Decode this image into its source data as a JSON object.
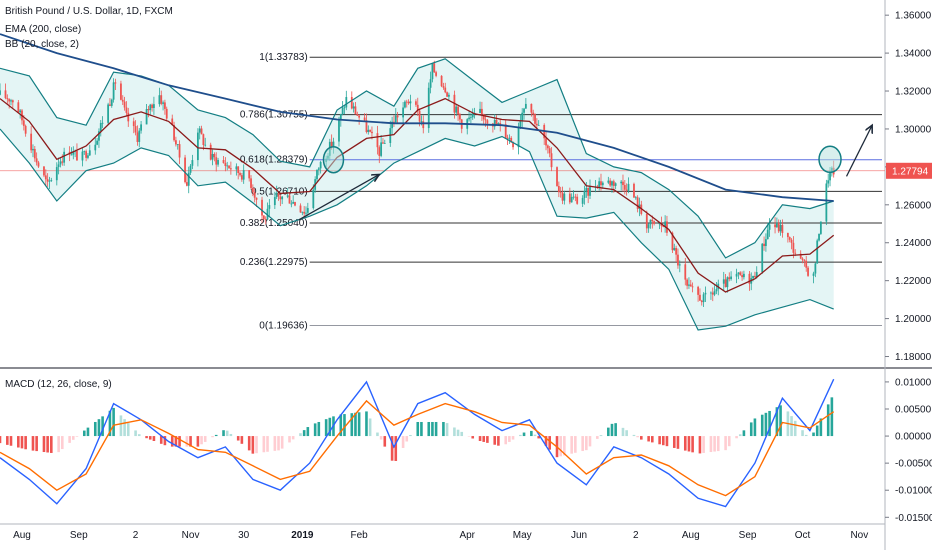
{
  "chart_data": {
    "type": "candlestick",
    "title": "British Pound / U.S. Dollar, 1D, FXCM",
    "indicators": [
      "EMA (200, close)",
      "BB (20, close, 2)"
    ],
    "price_axis": {
      "ticks": [
        "1.36000",
        "1.34000",
        "1.32000",
        "1.30000",
        "1.28000",
        "1.26000",
        "1.24000",
        "1.22000",
        "1.20000",
        "1.18000"
      ],
      "ylim": [
        1.175,
        1.368
      ],
      "last_price_label": "1.27794",
      "last_price": 1.27794
    },
    "fib_levels": [
      {
        "label": "1(1.33783)",
        "value": 1.33783
      },
      {
        "label": "0.786(1.30755)",
        "value": 1.30755
      },
      {
        "label": "0.618(1.28379)",
        "value": 1.28379
      },
      {
        "label": "0.5(1.26710)",
        "value": 1.2671
      },
      {
        "label": "0.382(1.25040)",
        "value": 1.2504
      },
      {
        "label": "0.236(1.22975)",
        "value": 1.22975
      },
      {
        "label": "0(1.19636)",
        "value": 1.19636
      }
    ],
    "macd": {
      "label": "MACD (12, 26, close, 9)",
      "ticks": [
        "0.01000",
        "0.00500",
        "0.00000",
        "-0.00500",
        "-0.01000",
        "-0.01500"
      ],
      "ylim": [
        -0.0155,
        0.0122
      ]
    },
    "x_axis_labels": [
      "Aug",
      "Sep",
      "2",
      "Nov",
      "30",
      "2019",
      "Feb",
      "Apr",
      "May",
      "Jun",
      "2",
      "Aug",
      "Sep",
      "Oct",
      "Nov"
    ],
    "price_series": [
      {
        "date": "2018-07-20",
        "price": 1.318
      },
      {
        "date": "2018-07-28",
        "price": 1.315
      },
      {
        "date": "2018-08-03",
        "price": 1.3
      },
      {
        "date": "2018-08-09",
        "price": 1.283
      },
      {
        "date": "2018-08-15",
        "price": 1.27
      },
      {
        "date": "2018-08-21",
        "price": 1.283
      },
      {
        "date": "2018-08-27",
        "price": 1.289
      },
      {
        "date": "2018-09-02",
        "price": 1.284
      },
      {
        "date": "2018-09-10",
        "price": 1.294
      },
      {
        "date": "2018-09-18",
        "price": 1.315
      },
      {
        "date": "2018-09-21",
        "price": 1.325
      },
      {
        "date": "2018-09-27",
        "price": 1.306
      },
      {
        "date": "2018-10-03",
        "price": 1.296
      },
      {
        "date": "2018-10-09",
        "price": 1.311
      },
      {
        "date": "2018-10-15",
        "price": 1.318
      },
      {
        "date": "2018-10-22",
        "price": 1.3
      },
      {
        "date": "2018-10-30",
        "price": 1.271
      },
      {
        "date": "2018-11-05",
        "price": 1.3
      },
      {
        "date": "2018-11-12",
        "price": 1.285
      },
      {
        "date": "2018-11-19",
        "price": 1.282
      },
      {
        "date": "2018-11-26",
        "price": 1.278
      },
      {
        "date": "2018-12-03",
        "price": 1.274
      },
      {
        "date": "2018-12-11",
        "price": 1.252
      },
      {
        "date": "2018-12-18",
        "price": 1.264
      },
      {
        "date": "2018-12-24",
        "price": 1.264
      },
      {
        "date": "2019-01-03",
        "price": 1.256
      },
      {
        "date": "2019-01-10",
        "price": 1.28
      },
      {
        "date": "2019-01-18",
        "price": 1.294
      },
      {
        "date": "2019-01-25",
        "price": 1.316
      },
      {
        "date": "2019-02-04",
        "price": 1.302
      },
      {
        "date": "2019-02-12",
        "price": 1.288
      },
      {
        "date": "2019-02-20",
        "price": 1.305
      },
      {
        "date": "2019-03-01",
        "price": 1.316
      },
      {
        "date": "2019-03-08",
        "price": 1.302
      },
      {
        "date": "2019-03-13",
        "price": 1.332
      },
      {
        "date": "2019-03-20",
        "price": 1.322
      },
      {
        "date": "2019-03-29",
        "price": 1.303
      },
      {
        "date": "2019-04-08",
        "price": 1.308
      },
      {
        "date": "2019-04-18",
        "price": 1.302
      },
      {
        "date": "2019-04-26",
        "price": 1.293
      },
      {
        "date": "2019-05-03",
        "price": 1.316
      },
      {
        "date": "2019-05-13",
        "price": 1.294
      },
      {
        "date": "2019-05-22",
        "price": 1.265
      },
      {
        "date": "2019-06-01",
        "price": 1.262
      },
      {
        "date": "2019-06-11",
        "price": 1.272
      },
      {
        "date": "2019-06-21",
        "price": 1.272
      },
      {
        "date": "2019-06-28",
        "price": 1.27
      },
      {
        "date": "2019-07-08",
        "price": 1.25
      },
      {
        "date": "2019-07-18",
        "price": 1.249
      },
      {
        "date": "2019-07-30",
        "price": 1.216
      },
      {
        "date": "2019-08-08",
        "price": 1.21
      },
      {
        "date": "2019-08-16",
        "price": 1.216
      },
      {
        "date": "2019-08-26",
        "price": 1.222
      },
      {
        "date": "2019-09-04",
        "price": 1.221
      },
      {
        "date": "2019-09-13",
        "price": 1.25
      },
      {
        "date": "2019-09-20",
        "price": 1.247
      },
      {
        "date": "2019-09-30",
        "price": 1.23
      },
      {
        "date": "2019-10-07",
        "price": 1.222
      },
      {
        "date": "2019-10-10",
        "price": 1.247
      },
      {
        "date": "2019-10-15",
        "price": 1.275
      },
      {
        "date": "2019-10-18",
        "price": 1.278
      }
    ],
    "ema200": [
      {
        "date": "2018-07-20",
        "value": 1.35
      },
      {
        "date": "2018-08-20",
        "value": 1.34
      },
      {
        "date": "2018-09-20",
        "value": 1.332
      },
      {
        "date": "2018-10-20",
        "value": 1.323
      },
      {
        "date": "2018-11-20",
        "value": 1.316
      },
      {
        "date": "2018-12-20",
        "value": 1.309
      },
      {
        "date": "2019-01-20",
        "value": 1.305
      },
      {
        "date": "2019-02-20",
        "value": 1.303
      },
      {
        "date": "2019-03-20",
        "value": 1.303
      },
      {
        "date": "2019-04-20",
        "value": 1.302
      },
      {
        "date": "2019-05-20",
        "value": 1.298
      },
      {
        "date": "2019-06-20",
        "value": 1.29
      },
      {
        "date": "2019-07-20",
        "value": 1.28
      },
      {
        "date": "2019-08-20",
        "value": 1.268
      },
      {
        "date": "2019-09-20",
        "value": 1.264
      },
      {
        "date": "2019-10-18",
        "value": 1.262
      }
    ],
    "bb_middle": [
      {
        "date": "2018-07-20",
        "value": 1.316
      },
      {
        "date": "2018-08-05",
        "value": 1.304
      },
      {
        "date": "2018-08-20",
        "value": 1.284
      },
      {
        "date": "2018-09-05",
        "value": 1.291
      },
      {
        "date": "2018-09-20",
        "value": 1.305
      },
      {
        "date": "2018-10-05",
        "value": 1.309
      },
      {
        "date": "2018-10-20",
        "value": 1.304
      },
      {
        "date": "2018-11-05",
        "value": 1.29
      },
      {
        "date": "2018-11-20",
        "value": 1.289
      },
      {
        "date": "2018-12-05",
        "value": 1.279
      },
      {
        "date": "2018-12-20",
        "value": 1.266
      },
      {
        "date": "2019-01-05",
        "value": 1.267
      },
      {
        "date": "2019-01-20",
        "value": 1.285
      },
      {
        "date": "2019-02-05",
        "value": 1.295
      },
      {
        "date": "2019-02-20",
        "value": 1.297
      },
      {
        "date": "2019-03-05",
        "value": 1.31
      },
      {
        "date": "2019-03-20",
        "value": 1.316
      },
      {
        "date": "2019-04-05",
        "value": 1.308
      },
      {
        "date": "2019-04-20",
        "value": 1.305
      },
      {
        "date": "2019-05-05",
        "value": 1.304
      },
      {
        "date": "2019-05-20",
        "value": 1.29
      },
      {
        "date": "2019-06-05",
        "value": 1.27
      },
      {
        "date": "2019-06-20",
        "value": 1.268
      },
      {
        "date": "2019-07-05",
        "value": 1.258
      },
      {
        "date": "2019-07-20",
        "value": 1.247
      },
      {
        "date": "2019-08-05",
        "value": 1.224
      },
      {
        "date": "2019-08-20",
        "value": 1.214
      },
      {
        "date": "2019-09-05",
        "value": 1.221
      },
      {
        "date": "2019-09-20",
        "value": 1.233
      },
      {
        "date": "2019-10-05",
        "value": 1.234
      },
      {
        "date": "2019-10-18",
        "value": 1.244
      }
    ],
    "bb_upper": [
      {
        "date": "2018-07-20",
        "value": 1.332
      },
      {
        "date": "2018-08-05",
        "value": 1.328
      },
      {
        "date": "2018-08-20",
        "value": 1.306
      },
      {
        "date": "2018-09-05",
        "value": 1.302
      },
      {
        "date": "2018-09-20",
        "value": 1.33
      },
      {
        "date": "2018-10-05",
        "value": 1.328
      },
      {
        "date": "2018-10-20",
        "value": 1.323
      },
      {
        "date": "2018-11-05",
        "value": 1.31
      },
      {
        "date": "2018-11-20",
        "value": 1.306
      },
      {
        "date": "2018-12-05",
        "value": 1.297
      },
      {
        "date": "2018-12-20",
        "value": 1.283
      },
      {
        "date": "2019-01-05",
        "value": 1.28
      },
      {
        "date": "2019-01-20",
        "value": 1.31
      },
      {
        "date": "2019-02-05",
        "value": 1.32
      },
      {
        "date": "2019-02-20",
        "value": 1.312
      },
      {
        "date": "2019-03-05",
        "value": 1.332
      },
      {
        "date": "2019-03-20",
        "value": 1.337
      },
      {
        "date": "2019-04-05",
        "value": 1.325
      },
      {
        "date": "2019-04-20",
        "value": 1.314
      },
      {
        "date": "2019-05-05",
        "value": 1.32
      },
      {
        "date": "2019-05-20",
        "value": 1.326
      },
      {
        "date": "2019-06-05",
        "value": 1.287
      },
      {
        "date": "2019-06-20",
        "value": 1.28
      },
      {
        "date": "2019-07-05",
        "value": 1.277
      },
      {
        "date": "2019-07-20",
        "value": 1.268
      },
      {
        "date": "2019-08-05",
        "value": 1.254
      },
      {
        "date": "2019-08-20",
        "value": 1.232
      },
      {
        "date": "2019-09-05",
        "value": 1.24
      },
      {
        "date": "2019-09-20",
        "value": 1.26
      },
      {
        "date": "2019-10-05",
        "value": 1.258
      },
      {
        "date": "2019-10-18",
        "value": 1.262
      }
    ],
    "bb_lower": [
      {
        "date": "2018-07-20",
        "value": 1.3
      },
      {
        "date": "2018-08-05",
        "value": 1.282
      },
      {
        "date": "2018-08-20",
        "value": 1.262
      },
      {
        "date": "2018-09-05",
        "value": 1.278
      },
      {
        "date": "2018-09-20",
        "value": 1.282
      },
      {
        "date": "2018-10-05",
        "value": 1.29
      },
      {
        "date": "2018-10-20",
        "value": 1.286
      },
      {
        "date": "2018-11-05",
        "value": 1.27
      },
      {
        "date": "2018-11-20",
        "value": 1.272
      },
      {
        "date": "2018-12-05",
        "value": 1.261
      },
      {
        "date": "2018-12-20",
        "value": 1.249
      },
      {
        "date": "2019-01-05",
        "value": 1.254
      },
      {
        "date": "2019-01-20",
        "value": 1.26
      },
      {
        "date": "2019-02-05",
        "value": 1.27
      },
      {
        "date": "2019-02-20",
        "value": 1.282
      },
      {
        "date": "2019-03-05",
        "value": 1.288
      },
      {
        "date": "2019-03-20",
        "value": 1.295
      },
      {
        "date": "2019-04-05",
        "value": 1.291
      },
      {
        "date": "2019-04-20",
        "value": 1.296
      },
      {
        "date": "2019-05-05",
        "value": 1.288
      },
      {
        "date": "2019-05-20",
        "value": 1.254
      },
      {
        "date": "2019-06-05",
        "value": 1.253
      },
      {
        "date": "2019-06-20",
        "value": 1.256
      },
      {
        "date": "2019-07-05",
        "value": 1.24
      },
      {
        "date": "2019-07-20",
        "value": 1.226
      },
      {
        "date": "2019-08-05",
        "value": 1.194
      },
      {
        "date": "2019-08-20",
        "value": 1.196
      },
      {
        "date": "2019-09-05",
        "value": 1.202
      },
      {
        "date": "2019-09-20",
        "value": 1.206
      },
      {
        "date": "2019-10-05",
        "value": 1.21
      },
      {
        "date": "2019-10-18",
        "value": 1.205
      }
    ],
    "macd_line": [
      {
        "date": "2018-07-20",
        "value": -0.004
      },
      {
        "date": "2018-08-05",
        "value": -0.008
      },
      {
        "date": "2018-08-20",
        "value": -0.0125
      },
      {
        "date": "2018-09-05",
        "value": -0.006
      },
      {
        "date": "2018-09-20",
        "value": 0.006
      },
      {
        "date": "2018-10-05",
        "value": 0.003
      },
      {
        "date": "2018-10-20",
        "value": -0.001
      },
      {
        "date": "2018-11-05",
        "value": -0.004
      },
      {
        "date": "2018-11-20",
        "value": -0.002
      },
      {
        "date": "2018-12-05",
        "value": -0.008
      },
      {
        "date": "2018-12-20",
        "value": -0.01
      },
      {
        "date": "2019-01-05",
        "value": -0.005
      },
      {
        "date": "2019-01-20",
        "value": 0.003
      },
      {
        "date": "2019-02-05",
        "value": 0.01
      },
      {
        "date": "2019-02-20",
        "value": -0.002
      },
      {
        "date": "2019-03-05",
        "value": 0.006
      },
      {
        "date": "2019-03-20",
        "value": 0.008
      },
      {
        "date": "2019-04-05",
        "value": 0.004
      },
      {
        "date": "2019-04-20",
        "value": 0.001
      },
      {
        "date": "2019-05-05",
        "value": 0.003
      },
      {
        "date": "2019-05-20",
        "value": -0.005
      },
      {
        "date": "2019-06-05",
        "value": -0.009
      },
      {
        "date": "2019-06-20",
        "value": -0.002
      },
      {
        "date": "2019-07-05",
        "value": -0.004
      },
      {
        "date": "2019-07-20",
        "value": -0.007
      },
      {
        "date": "2019-08-05",
        "value": -0.0115
      },
      {
        "date": "2019-08-20",
        "value": -0.013
      },
      {
        "date": "2019-09-05",
        "value": -0.005
      },
      {
        "date": "2019-09-20",
        "value": 0.007
      },
      {
        "date": "2019-10-05",
        "value": 0.001
      },
      {
        "date": "2019-10-18",
        "value": 0.0105
      }
    ],
    "signal_line": [
      {
        "date": "2018-07-20",
        "value": -0.003
      },
      {
        "date": "2018-08-05",
        "value": -0.006
      },
      {
        "date": "2018-08-20",
        "value": -0.01
      },
      {
        "date": "2018-09-05",
        "value": -0.007
      },
      {
        "date": "2018-09-20",
        "value": 0.002
      },
      {
        "date": "2018-10-05",
        "value": 0.003
      },
      {
        "date": "2018-10-20",
        "value": 0.0005
      },
      {
        "date": "2018-11-05",
        "value": -0.0025
      },
      {
        "date": "2018-11-20",
        "value": -0.003
      },
      {
        "date": "2018-12-05",
        "value": -0.0055
      },
      {
        "date": "2018-12-20",
        "value": -0.008
      },
      {
        "date": "2019-01-05",
        "value": -0.0065
      },
      {
        "date": "2019-01-20",
        "value": 0.0
      },
      {
        "date": "2019-02-05",
        "value": 0.0065
      },
      {
        "date": "2019-02-20",
        "value": 0.002
      },
      {
        "date": "2019-03-05",
        "value": 0.004
      },
      {
        "date": "2019-03-20",
        "value": 0.006
      },
      {
        "date": "2019-04-05",
        "value": 0.0045
      },
      {
        "date": "2019-04-20",
        "value": 0.0025
      },
      {
        "date": "2019-05-05",
        "value": 0.002
      },
      {
        "date": "2019-05-20",
        "value": -0.002
      },
      {
        "date": "2019-06-05",
        "value": -0.007
      },
      {
        "date": "2019-06-20",
        "value": -0.004
      },
      {
        "date": "2019-07-05",
        "value": -0.0035
      },
      {
        "date": "2019-07-20",
        "value": -0.0055
      },
      {
        "date": "2019-08-05",
        "value": -0.009
      },
      {
        "date": "2019-08-20",
        "value": -0.011
      },
      {
        "date": "2019-09-05",
        "value": -0.0075
      },
      {
        "date": "2019-09-20",
        "value": 0.0025
      },
      {
        "date": "2019-10-05",
        "value": 0.0015
      },
      {
        "date": "2019-10-18",
        "value": 0.0045
      }
    ],
    "colors": {
      "ema": "#1f4e8c",
      "bb": "#137e83",
      "bb_middle": "#8b1a1a",
      "bb_fill": "#dff3f3",
      "up": "#26a69a",
      "down": "#ef5350",
      "up_light": "#b2dfdb",
      "down_light": "#ffcdd2",
      "macd": "#2962ff",
      "signal": "#ff6d00",
      "fib": "#000000",
      "fib_highlight": "#5b6ee1",
      "last_price": "#ef5350",
      "circle": "#137e83",
      "arrow": "#1e2a3a"
    }
  }
}
